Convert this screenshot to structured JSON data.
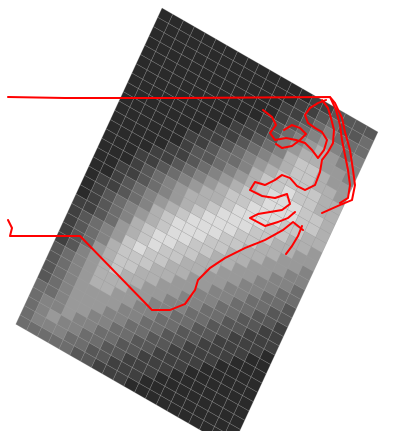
{
  "map": {
    "colors": {
      "background": "#ffffff",
      "grid_line": "#9a9a9a",
      "boundary": "#ff0000",
      "low_value": "#2a2a2a",
      "high_value": "#dcdcdc"
    },
    "grid": {
      "rows": 34,
      "cols": 20,
      "values": [
        [
          0,
          0,
          0,
          0,
          0,
          0,
          0,
          0,
          0,
          0,
          0,
          0,
          0,
          0,
          1,
          1,
          2,
          2,
          2,
          2
        ],
        [
          0,
          0,
          0,
          0,
          0,
          0,
          0,
          0,
          0,
          0,
          0,
          0,
          0,
          1,
          1,
          2,
          3,
          2,
          2,
          3
        ],
        [
          0,
          0,
          0,
          0,
          0,
          0,
          0,
          0,
          0,
          0,
          0,
          0,
          1,
          1,
          2,
          3,
          4,
          3,
          3,
          3
        ],
        [
          0,
          0,
          0,
          0,
          0,
          0,
          0,
          0,
          0,
          0,
          0,
          0,
          1,
          2,
          3,
          4,
          5,
          4,
          3,
          4
        ],
        [
          0,
          0,
          0,
          0,
          0,
          0,
          0,
          0,
          0,
          0,
          0,
          1,
          2,
          3,
          4,
          5,
          6,
          5,
          4,
          4
        ],
        [
          0,
          0,
          0,
          0,
          0,
          0,
          0,
          0,
          0,
          0,
          1,
          1,
          2,
          4,
          5,
          6,
          6,
          5,
          5,
          4
        ],
        [
          0,
          0,
          0,
          0,
          0,
          0,
          0,
          0,
          0,
          1,
          1,
          2,
          3,
          4,
          6,
          7,
          7,
          6,
          5,
          5
        ],
        [
          0,
          0,
          0,
          0,
          0,
          0,
          0,
          0,
          1,
          1,
          2,
          3,
          4,
          5,
          6,
          7,
          7,
          6,
          6,
          5
        ],
        [
          0,
          0,
          0,
          0,
          0,
          0,
          0,
          1,
          1,
          2,
          3,
          4,
          5,
          6,
          7,
          7,
          7,
          7,
          6,
          6
        ],
        [
          0,
          0,
          0,
          0,
          0,
          0,
          1,
          1,
          2,
          3,
          3,
          4,
          6,
          7,
          7,
          8,
          7,
          7,
          6,
          6
        ],
        [
          0,
          0,
          0,
          0,
          0,
          0,
          1,
          2,
          2,
          3,
          4,
          5,
          6,
          7,
          8,
          8,
          8,
          7,
          7,
          6
        ],
        [
          0,
          0,
          0,
          0,
          0,
          1,
          1,
          2,
          3,
          4,
          5,
          6,
          7,
          7,
          8,
          8,
          8,
          7,
          7,
          6
        ],
        [
          0,
          0,
          0,
          0,
          1,
          1,
          2,
          3,
          4,
          5,
          6,
          7,
          7,
          8,
          8,
          8,
          7,
          7,
          6,
          6
        ],
        [
          0,
          0,
          0,
          1,
          1,
          2,
          3,
          4,
          5,
          6,
          6,
          7,
          8,
          8,
          8,
          7,
          7,
          6,
          6,
          5
        ],
        [
          0,
          0,
          0,
          1,
          2,
          3,
          4,
          5,
          6,
          6,
          7,
          8,
          8,
          8,
          7,
          7,
          6,
          6,
          5,
          5
        ],
        [
          0,
          0,
          1,
          1,
          2,
          3,
          4,
          5,
          6,
          7,
          8,
          8,
          8,
          7,
          7,
          6,
          6,
          5,
          5,
          4
        ],
        [
          0,
          0,
          1,
          2,
          3,
          4,
          5,
          6,
          7,
          8,
          8,
          8,
          7,
          7,
          6,
          6,
          5,
          5,
          4,
          4
        ],
        [
          0,
          1,
          1,
          2,
          3,
          4,
          6,
          7,
          8,
          8,
          8,
          7,
          7,
          6,
          6,
          5,
          5,
          4,
          4,
          3
        ],
        [
          0,
          1,
          2,
          3,
          4,
          5,
          6,
          7,
          8,
          8,
          7,
          7,
          6,
          6,
          5,
          5,
          4,
          4,
          3,
          3
        ],
        [
          0,
          1,
          2,
          3,
          4,
          6,
          7,
          8,
          8,
          7,
          7,
          6,
          6,
          5,
          5,
          4,
          4,
          3,
          3,
          2
        ],
        [
          1,
          1,
          2,
          3,
          5,
          6,
          7,
          8,
          7,
          7,
          6,
          6,
          5,
          5,
          4,
          4,
          3,
          3,
          2,
          2
        ],
        [
          1,
          2,
          3,
          4,
          5,
          7,
          8,
          7,
          7,
          6,
          6,
          5,
          5,
          4,
          4,
          3,
          3,
          2,
          2,
          1
        ],
        [
          1,
          2,
          3,
          4,
          6,
          7,
          7,
          7,
          6,
          6,
          5,
          5,
          4,
          4,
          3,
          3,
          2,
          2,
          1,
          1
        ],
        [
          1,
          2,
          3,
          5,
          6,
          7,
          7,
          6,
          6,
          5,
          5,
          4,
          4,
          3,
          3,
          2,
          2,
          1,
          1,
          1
        ],
        [
          1,
          2,
          4,
          5,
          6,
          7,
          6,
          6,
          5,
          5,
          4,
          4,
          3,
          3,
          2,
          2,
          1,
          1,
          1,
          0
        ],
        [
          2,
          3,
          4,
          5,
          6,
          6,
          6,
          5,
          5,
          4,
          4,
          3,
          3,
          2,
          2,
          1,
          1,
          1,
          0,
          0
        ],
        [
          2,
          3,
          4,
          5,
          6,
          6,
          5,
          5,
          4,
          4,
          3,
          3,
          2,
          2,
          1,
          1,
          1,
          0,
          0,
          0
        ],
        [
          2,
          3,
          4,
          5,
          5,
          5,
          5,
          4,
          4,
          3,
          3,
          2,
          2,
          1,
          1,
          1,
          0,
          0,
          0,
          0
        ],
        [
          2,
          3,
          4,
          5,
          5,
          5,
          4,
          4,
          3,
          3,
          2,
          2,
          1,
          1,
          1,
          0,
          0,
          0,
          0,
          0
        ],
        [
          3,
          3,
          4,
          5,
          5,
          4,
          4,
          3,
          3,
          2,
          2,
          1,
          1,
          1,
          0,
          0,
          0,
          0,
          0,
          0
        ],
        [
          3,
          4,
          4,
          5,
          4,
          4,
          3,
          3,
          2,
          2,
          1,
          1,
          1,
          0,
          0,
          0,
          0,
          0,
          0,
          0
        ],
        [
          3,
          4,
          5,
          4,
          4,
          3,
          3,
          2,
          2,
          1,
          1,
          1,
          0,
          0,
          0,
          0,
          0,
          0,
          0,
          0
        ],
        [
          3,
          4,
          4,
          4,
          3,
          3,
          2,
          2,
          1,
          1,
          1,
          0,
          0,
          0,
          0,
          0,
          0,
          0,
          0,
          0
        ],
        [
          3,
          3,
          3,
          3,
          3,
          2,
          2,
          1,
          1,
          1,
          0,
          0,
          0,
          0,
          0,
          0,
          0,
          0,
          0,
          0
        ]
      ]
    }
  }
}
